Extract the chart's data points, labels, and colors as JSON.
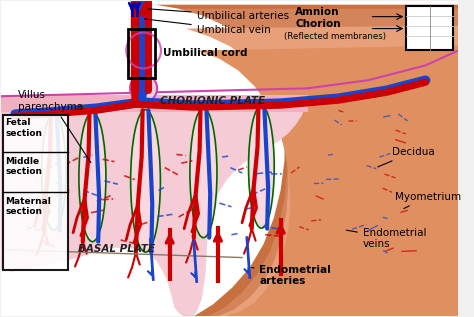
{
  "bg_color": "#f0f0f0",
  "colors": {
    "artery": "#cc0000",
    "vein": "#1a44cc",
    "vein_dark": "#0000aa",
    "vessel_outline": "#006600",
    "magenta": "#cc44aa",
    "arrow_blue": "#3355ff",
    "arrow_red": "#cc0000",
    "outer_wall1": "#c87040",
    "outer_wall2": "#d4845a",
    "outer_wall3": "#e8a07a",
    "decidua_color": "#e09060",
    "placenta_pink": "#f2c0ca",
    "placenta_light": "#f8d8e0",
    "chorionic_band": "#f0b0c0",
    "white": "#ffffff",
    "black": "#000000"
  },
  "labels": {
    "umbilical_arteries": "Umbilical arteries",
    "umbilical_vein": "Umbilical vein",
    "umbilical_cord": "Umbilical cord",
    "villus_parenchyma": "Villus\nparenchyma",
    "chorionic_plate": "CHORIONIC PLATE",
    "basal_plate": "BASAL PLATE",
    "fetal_section": "Fetal\nsection",
    "middle_section": "Middle\nsection",
    "maternal_section": "Maternal\nsection",
    "amnion": "Amnion",
    "chorion": "Chorion",
    "reflected": "(Reflected membranes)",
    "decidua": "Decidua",
    "myometrium": "Myometrium",
    "endometrial_veins": "Endometrial\nveins",
    "endometrial_arteries": "Endometrial\narteries"
  }
}
